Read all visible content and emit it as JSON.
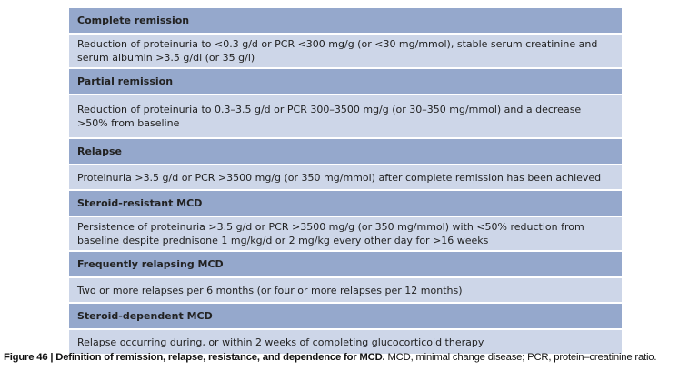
{
  "rows": [
    {
      "heading": "Complete remission",
      "text": "Reduction of proteinuria to <0.3 g/d or PCR <300 mg/g (or <30 mg/mmol), stable serum creatinine and serum albumin >3.5 g/dl (or 35 g/l)"
    },
    {
      "heading": "Partial remission",
      "text": "Reduction of proteinuria to 0.3–3.5 g/d or PCR 300–3500 mg/g (or 30–350 mg/mmol) and a decrease >50% from baseline"
    },
    {
      "heading": "Relapse",
      "text": "Proteinuria >3.5 g/d or PCR >3500 mg/g (or 350 mg/mmol) after complete remission has been achieved"
    },
    {
      "heading": "Steroid-resistant MCD",
      "text": "Persistence of proteinuria >3.5 g/d or PCR >3500 mg/g (or 350 mg/mmol) with <50% reduction from baseline despite prednisone 1 mg/kg/d or 2 mg/kg every other day for >16 weeks"
    },
    {
      "heading": "Frequently relapsing MCD",
      "text": "Two or more relapses per 6 months (or four or more relapses per 12 months)"
    },
    {
      "heading": "Steroid-dependent MCD",
      "text": "Relapse occurring during, or within 2 weeks of completing glucocorticoid therapy"
    }
  ],
  "caption": {
    "label": "Figure 46 | Definition of remission, relapse, resistance, and dependence for MCD.",
    "text": " MCD, minimal change disease; PCR, protein–creatinine ratio."
  },
  "colors": {
    "header_bg": "#95a8cc",
    "content_bg": "#cdd6e8"
  }
}
